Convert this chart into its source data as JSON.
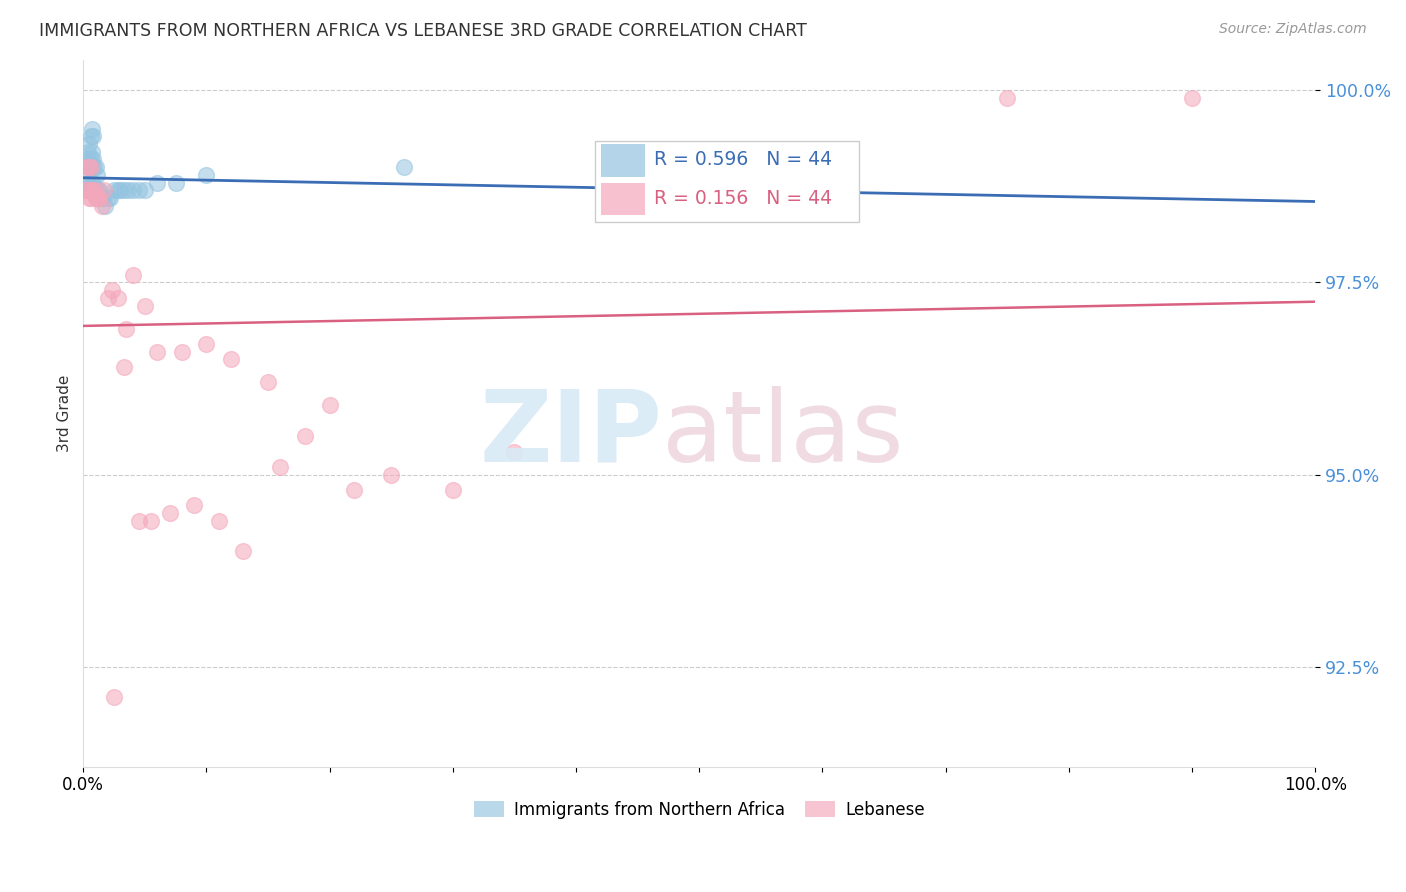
{
  "title": "IMMIGRANTS FROM NORTHERN AFRICA VS LEBANESE 3RD GRADE CORRELATION CHART",
  "source": "Source: ZipAtlas.com",
  "ylabel": "3rd Grade",
  "xlim": [
    0.0,
    1.0
  ],
  "ylim": [
    0.912,
    1.004
  ],
  "yticks": [
    0.925,
    0.95,
    0.975,
    1.0
  ],
  "ytick_labels": [
    "92.5%",
    "95.0%",
    "97.5%",
    "100.0%"
  ],
  "xtick_labels": [
    "0.0%",
    "",
    "",
    "",
    "",
    "",
    "",
    "",
    "",
    "",
    "100.0%"
  ],
  "blue_color": "#94c4e0",
  "pink_color": "#f4a7bb",
  "blue_line_color": "#3b6db5",
  "pink_line_color": "#d96080",
  "legend_blue_R": "R = 0.596",
  "legend_blue_N": "N = 44",
  "legend_pink_R": "R = 0.156",
  "legend_pink_N": "N = 44",
  "blue_x": [
    0.002,
    0.003,
    0.003,
    0.004,
    0.004,
    0.005,
    0.005,
    0.005,
    0.006,
    0.006,
    0.006,
    0.007,
    0.007,
    0.007,
    0.007,
    0.008,
    0.008,
    0.008,
    0.009,
    0.009,
    0.01,
    0.01,
    0.011,
    0.011,
    0.012,
    0.013,
    0.014,
    0.015,
    0.016,
    0.018,
    0.02,
    0.022,
    0.025,
    0.028,
    0.03,
    0.033,
    0.036,
    0.04,
    0.045,
    0.05,
    0.06,
    0.075,
    0.1,
    0.26
  ],
  "blue_y": [
    0.987,
    0.989,
    0.991,
    0.988,
    0.992,
    0.987,
    0.99,
    0.993,
    0.988,
    0.991,
    0.994,
    0.987,
    0.99,
    0.992,
    0.995,
    0.988,
    0.991,
    0.994,
    0.987,
    0.99,
    0.987,
    0.99,
    0.986,
    0.989,
    0.987,
    0.987,
    0.986,
    0.986,
    0.986,
    0.985,
    0.986,
    0.986,
    0.987,
    0.987,
    0.987,
    0.987,
    0.987,
    0.987,
    0.987,
    0.987,
    0.988,
    0.988,
    0.989,
    0.99
  ],
  "pink_x": [
    0.002,
    0.003,
    0.004,
    0.005,
    0.005,
    0.006,
    0.006,
    0.007,
    0.008,
    0.009,
    0.01,
    0.011,
    0.012,
    0.013,
    0.015,
    0.017,
    0.02,
    0.023,
    0.028,
    0.033,
    0.04,
    0.05,
    0.06,
    0.08,
    0.1,
    0.12,
    0.15,
    0.2,
    0.25,
    0.3,
    0.35,
    0.22,
    0.18,
    0.16,
    0.13,
    0.11,
    0.09,
    0.07,
    0.055,
    0.045,
    0.035,
    0.025,
    0.75,
    0.9
  ],
  "pink_y": [
    0.987,
    0.99,
    0.987,
    0.986,
    0.99,
    0.986,
    0.99,
    0.987,
    0.987,
    0.987,
    0.986,
    0.986,
    0.986,
    0.986,
    0.985,
    0.987,
    0.973,
    0.974,
    0.973,
    0.964,
    0.976,
    0.972,
    0.966,
    0.966,
    0.967,
    0.965,
    0.962,
    0.959,
    0.95,
    0.948,
    0.953,
    0.948,
    0.955,
    0.951,
    0.94,
    0.944,
    0.946,
    0.945,
    0.944,
    0.944,
    0.969,
    0.921,
    0.999,
    0.999
  ]
}
